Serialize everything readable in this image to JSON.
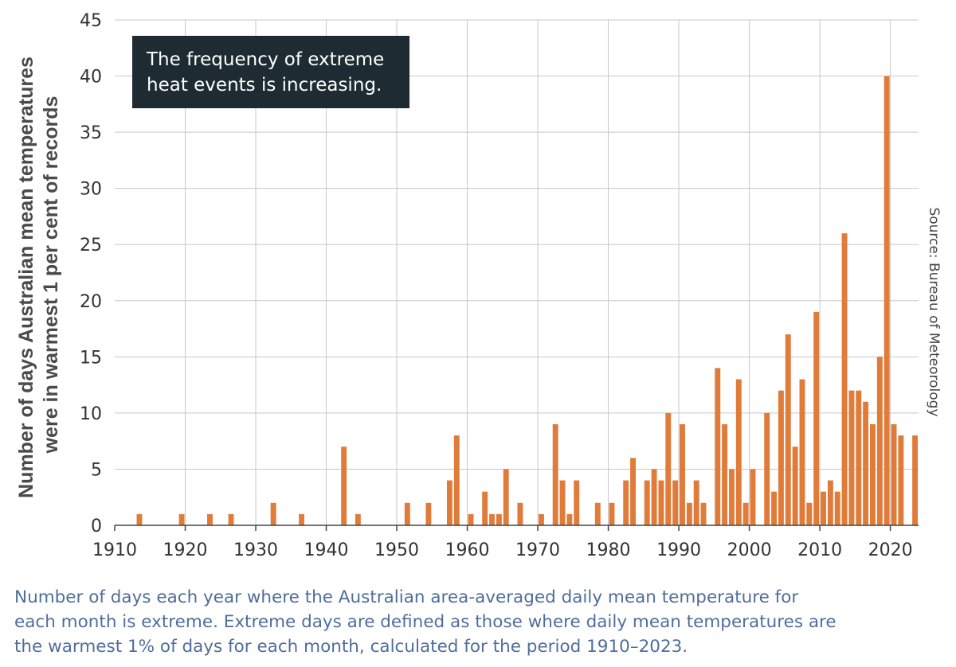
{
  "colors": {
    "bar": "#e07b39",
    "grid": "#c8c8c8",
    "axis": "#444444",
    "callout_bg": "#1e2b33",
    "caption": "#4f6e9c"
  },
  "callout": {
    "line1": "The frequency of extreme",
    "line2": "heat events is increasing."
  },
  "caption": {
    "line1": "Number of days each year where the Australian area-averaged daily mean temperature for",
    "line2": "each month is extreme. Extreme days are defined as those where daily mean temperatures are",
    "line3": "the warmest 1% of days for each month, calculated for the period 1910–2023."
  },
  "chart_data": {
    "type": "bar",
    "title": "",
    "xlabel": "",
    "ylabel_lines": [
      "Number of days Australian mean temperatures",
      "were in warmest 1 per cent of records"
    ],
    "source": "Source: Bureau of Meteorology",
    "xlim": [
      1910,
      2024
    ],
    "ylim": [
      0,
      45
    ],
    "xticks": [
      1910,
      1920,
      1930,
      1940,
      1950,
      1960,
      1970,
      1980,
      1990,
      2000,
      2010,
      2020
    ],
    "yticks": [
      0,
      5,
      10,
      15,
      20,
      25,
      30,
      35,
      40,
      45
    ],
    "grid": true,
    "x": [
      1910,
      1911,
      1912,
      1913,
      1914,
      1915,
      1916,
      1917,
      1918,
      1919,
      1920,
      1921,
      1922,
      1923,
      1924,
      1925,
      1926,
      1927,
      1928,
      1929,
      1930,
      1931,
      1932,
      1933,
      1934,
      1935,
      1936,
      1937,
      1938,
      1939,
      1940,
      1941,
      1942,
      1943,
      1944,
      1945,
      1946,
      1947,
      1948,
      1949,
      1950,
      1951,
      1952,
      1953,
      1954,
      1955,
      1956,
      1957,
      1958,
      1959,
      1960,
      1961,
      1962,
      1963,
      1964,
      1965,
      1966,
      1967,
      1968,
      1969,
      1970,
      1971,
      1972,
      1973,
      1974,
      1975,
      1976,
      1977,
      1978,
      1979,
      1980,
      1981,
      1982,
      1983,
      1984,
      1985,
      1986,
      1987,
      1988,
      1989,
      1990,
      1991,
      1992,
      1993,
      1994,
      1995,
      1996,
      1997,
      1998,
      1999,
      2000,
      2001,
      2002,
      2003,
      2004,
      2005,
      2006,
      2007,
      2008,
      2009,
      2010,
      2011,
      2012,
      2013,
      2014,
      2015,
      2016,
      2017,
      2018,
      2019,
      2020,
      2021,
      2022,
      2023
    ],
    "values": [
      0,
      0,
      0,
      1,
      0,
      0,
      0,
      0,
      0,
      1,
      0,
      0,
      0,
      1,
      0,
      0,
      1,
      0,
      0,
      0,
      0,
      0,
      2,
      0,
      0,
      0,
      1,
      0,
      0,
      0,
      0,
      0,
      7,
      0,
      1,
      0,
      0,
      0,
      0,
      0,
      0,
      2,
      0,
      0,
      2,
      0,
      0,
      4,
      8,
      0,
      1,
      0,
      3,
      1,
      1,
      5,
      0,
      2,
      0,
      0,
      1,
      0,
      9,
      4,
      1,
      4,
      0,
      0,
      2,
      0,
      2,
      0,
      4,
      6,
      0,
      4,
      5,
      4,
      10,
      4,
      9,
      2,
      4,
      2,
      0,
      14,
      9,
      5,
      13,
      2,
      5,
      0,
      10,
      3,
      12,
      17,
      7,
      13,
      2,
      19,
      3,
      4,
      3,
      26,
      12,
      12,
      11,
      9,
      15,
      40,
      9,
      8,
      0,
      8
    ]
  }
}
